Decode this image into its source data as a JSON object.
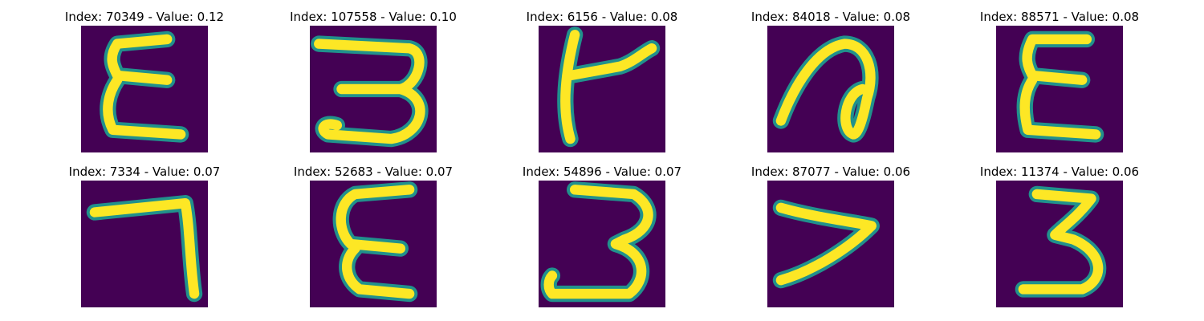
{
  "colors": {
    "background": "#440154",
    "mid": "#21918c",
    "stroke": "#fde725"
  },
  "panels": [
    {
      "title": "Index: 70349 - Value: 0.12",
      "glyph": "E-like"
    },
    {
      "title": "Index: 107558 - Value: 0.10",
      "glyph": "3-like"
    },
    {
      "title": "Index: 6156 - Value: 0.08",
      "glyph": "t-like"
    },
    {
      "title": "Index: 84018 - Value: 0.08",
      "glyph": "loop"
    },
    {
      "title": "Index: 88571 - Value: 0.08",
      "glyph": "E-like"
    },
    {
      "title": "Index: 7334 - Value: 0.07",
      "glyph": "7-like"
    },
    {
      "title": "Index: 52683 - Value: 0.07",
      "glyph": "E-like"
    },
    {
      "title": "Index: 54896 - Value: 0.07",
      "glyph": "3-like"
    },
    {
      "title": "Index: 87077 - Value: 0.06",
      "glyph": ">-like"
    },
    {
      "title": "Index: 11374 - Value: 0.06",
      "glyph": "3-like"
    }
  ]
}
